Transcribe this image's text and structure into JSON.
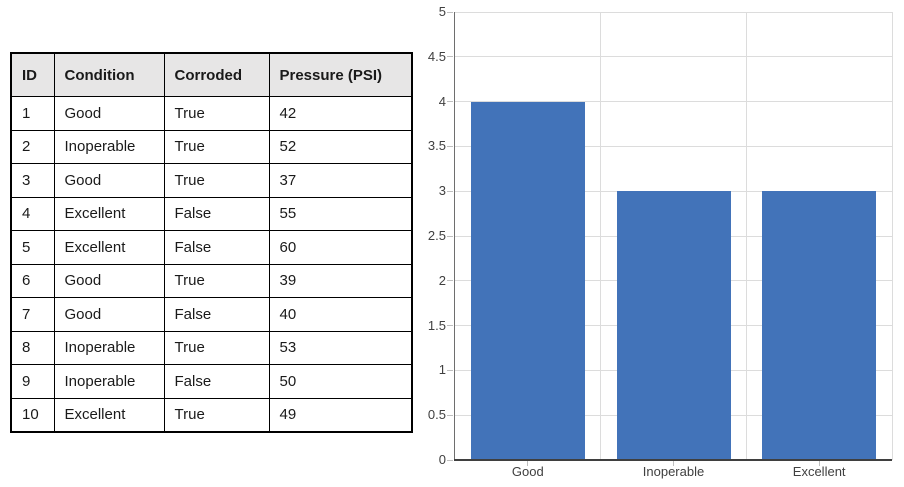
{
  "table": {
    "headers": [
      "ID",
      "Condition",
      "Corroded",
      "Pressure (PSI)"
    ],
    "rows": [
      [
        "1",
        "Good",
        "True",
        "42"
      ],
      [
        "2",
        "Inoperable",
        "True",
        "52"
      ],
      [
        "3",
        "Good",
        "True",
        "37"
      ],
      [
        "4",
        "Excellent",
        "False",
        "55"
      ],
      [
        "5",
        "Excellent",
        "False",
        "60"
      ],
      [
        "6",
        "Good",
        "True",
        "39"
      ],
      [
        "7",
        "Good",
        "False",
        "40"
      ],
      [
        "8",
        "Inoperable",
        "True",
        "53"
      ],
      [
        "9",
        "Inoperable",
        "False",
        "50"
      ],
      [
        "10",
        "Excellent",
        "True",
        "49"
      ]
    ],
    "header_bg": "#e7e6e6",
    "border_color": "#000000"
  },
  "chart_data": {
    "type": "bar",
    "categories": [
      "Good",
      "Inoperable",
      "Excellent"
    ],
    "values": [
      4,
      3,
      3
    ],
    "title": "",
    "xlabel": "",
    "ylabel": "",
    "ylim": [
      0,
      5
    ],
    "ytick_step": 0.5,
    "ytick_labels": [
      "0",
      "0.5",
      "1",
      "1.5",
      "2",
      "2.5",
      "3",
      "3.5",
      "4",
      "4.5",
      "5"
    ],
    "grid": true,
    "legend": "none",
    "colors": {
      "bar": "#4273b9",
      "gridline": "#dcdcdc",
      "y_axis_line": "#6e6e6e",
      "x_axis_line": "#3f3f3f",
      "tick": "#bfbfbf",
      "label_text": "#404040"
    }
  }
}
